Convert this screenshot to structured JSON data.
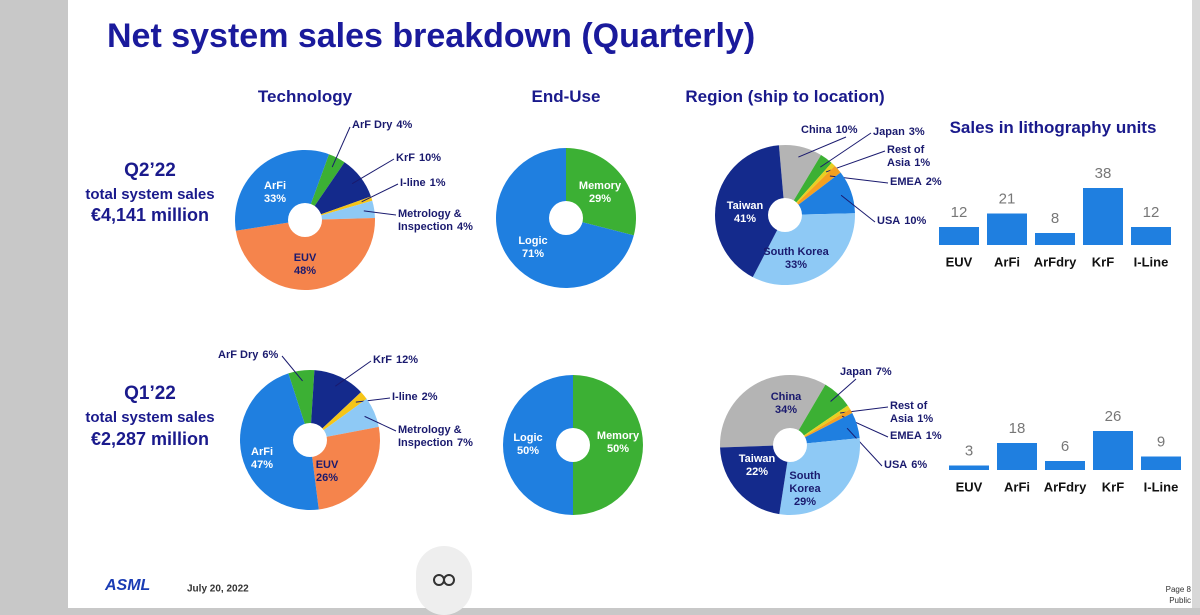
{
  "page": {
    "title": "Net system sales breakdown (Quarterly)",
    "periods": [
      {
        "label": "Q2’22",
        "caption": "total system sales",
        "amount": "€4,141 million"
      },
      {
        "label": "Q1’22",
        "caption": "total system sales",
        "amount": "€2,287 million"
      }
    ],
    "logo": "ASML",
    "date": "July 20, 2022",
    "page_number": "Page 8",
    "classification": "Public"
  },
  "chart_data": [
    {
      "type": "pie",
      "title": "Technology",
      "categories": [
        "ArF Dry",
        "KrF",
        "I-line",
        "Metrology & Inspection",
        "EUV",
        "ArFi"
      ],
      "values": [
        4,
        10,
        1,
        4,
        48,
        33
      ],
      "value_labels": [
        "4%",
        "10%",
        "1%",
        "4%",
        "48%",
        "33%"
      ],
      "colors": [
        "#3cb034",
        "#142a8c",
        "#f5c518",
        "#8ec9f5",
        "#f5844c",
        "#1f7fe0"
      ]
    },
    {
      "type": "pie",
      "title": "End-Use",
      "categories": [
        "Memory",
        "Logic"
      ],
      "values": [
        29,
        71
      ],
      "value_labels": [
        "29%",
        "71%"
      ],
      "colors": [
        "#3cb034",
        "#1f7fe0"
      ]
    },
    {
      "type": "pie",
      "title": "Region (ship to location)",
      "categories": [
        "China",
        "Japan",
        "Rest of Asia",
        "EMEA",
        "USA",
        "South Korea",
        "Taiwan"
      ],
      "values": [
        10,
        3,
        1,
        2,
        10,
        33,
        41
      ],
      "value_labels": [
        "10%",
        "3%",
        "1%",
        "2%",
        "10%",
        "33%",
        "41%"
      ],
      "colors": [
        "#b4b4b4",
        "#3cb034",
        "#e8d020",
        "#f5a020",
        "#1f7fe0",
        "#8ec9f5",
        "#142a8c"
      ]
    },
    {
      "type": "bar",
      "title": "Sales in lithography units",
      "categories": [
        "EUV",
        "ArFi",
        "ArFdry",
        "KrF",
        "I-Line"
      ],
      "values": [
        12,
        21,
        8,
        38,
        12
      ],
      "color": "#1f7fe0"
    },
    {
      "type": "pie",
      "categories": [
        "ArF Dry",
        "KrF",
        "I-line",
        "Metrology & Inspection",
        "EUV",
        "ArFi"
      ],
      "values": [
        6,
        12,
        2,
        7,
        26,
        47
      ],
      "value_labels": [
        "6%",
        "12%",
        "2%",
        "7%",
        "26%",
        "47%"
      ],
      "colors": [
        "#3cb034",
        "#142a8c",
        "#f5c518",
        "#8ec9f5",
        "#f5844c",
        "#1f7fe0"
      ]
    },
    {
      "type": "pie",
      "categories": [
        "Memory",
        "Logic"
      ],
      "values": [
        50,
        50
      ],
      "value_labels": [
        "50%",
        "50%"
      ],
      "colors": [
        "#3cb034",
        "#1f7fe0"
      ]
    },
    {
      "type": "pie",
      "categories": [
        "China",
        "Japan",
        "Rest of Asia",
        "EMEA",
        "USA",
        "South Korea",
        "Taiwan"
      ],
      "values": [
        34,
        7,
        1,
        1,
        6,
        29,
        22
      ],
      "value_labels": [
        "34%",
        "7%",
        "1%",
        "1%",
        "6%",
        "29%",
        "22%"
      ],
      "colors": [
        "#b4b4b4",
        "#3cb034",
        "#e8d020",
        "#f5a020",
        "#1f7fe0",
        "#8ec9f5",
        "#142a8c"
      ]
    },
    {
      "type": "bar",
      "categories": [
        "EUV",
        "ArFi",
        "ArFdry",
        "KrF",
        "I-Line"
      ],
      "values": [
        3,
        18,
        6,
        26,
        9
      ],
      "color": "#1f7fe0"
    }
  ]
}
